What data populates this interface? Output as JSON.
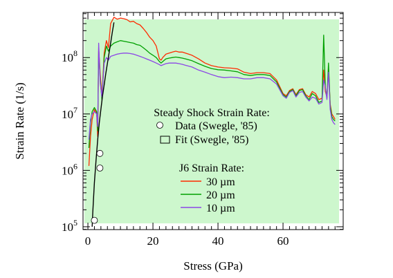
{
  "chart_data": {
    "type": "line",
    "title": "",
    "xlabel": "Stress (GPa)",
    "ylabel": "Strain Rate (1/s)",
    "xlim": [
      -1.5,
      78.5
    ],
    "ylim_log10": [
      4.95,
      8.8
    ],
    "y_scale": "log",
    "x_ticks": [
      0,
      20,
      40,
      60
    ],
    "x_tick_labels": [
      "0",
      "20",
      "40",
      "60"
    ],
    "y_ticks_log10": [
      5,
      6,
      7,
      8
    ],
    "y_tick_labels": [
      {
        "base": "10",
        "exp": "5"
      },
      {
        "base": "10",
        "exp": "6"
      },
      {
        "base": "10",
        "exp": "7"
      },
      {
        "base": "10",
        "exp": "8"
      }
    ],
    "grid": false,
    "background_color": "#cdf7cd",
    "legend": {
      "placement": "center",
      "heading_steady": "Steady Shock Strain Rate:",
      "data_label": "Data (Swegle, '85)",
      "fit_label": "Fit (Swegle, '85)",
      "heading_j6": "J6 Strain Rate:"
    },
    "data_points": {
      "name": "Data (Swegle, '85)",
      "x": [
        2.0,
        3.7,
        3.7
      ],
      "y": [
        130000,
        1100000,
        2000000
      ]
    },
    "fit_curve": {
      "name": "Fit (Swegle, '85)",
      "color": "#000000",
      "x": [
        1.3,
        1.5,
        2,
        2.5,
        3,
        3.5,
        4,
        4.5,
        5,
        5.5,
        6,
        6.5,
        7,
        7.5,
        8
      ],
      "y": [
        100000,
        180000,
        600000,
        1500000,
        3500000,
        7000000,
        12000000,
        21000000,
        33000000,
        52000000,
        80000000,
        120000000,
        180000000,
        280000000,
        420000000
      ]
    },
    "series": [
      {
        "name": "30 µm",
        "color": "#ff2a00",
        "x": [
          0.3,
          0.8,
          1.3,
          2,
          2.7,
          3.0,
          3.3,
          3.8,
          4.3,
          5,
          5.7,
          6.3,
          7,
          8,
          9,
          10,
          11,
          12,
          13,
          14,
          15,
          16,
          17,
          18,
          19,
          20,
          21,
          22,
          22.5,
          23,
          24,
          25,
          26,
          27,
          28,
          29,
          30,
          32,
          34,
          36,
          38,
          40,
          42,
          44,
          46,
          48,
          50,
          52,
          54,
          56,
          58,
          60,
          61,
          62,
          63,
          64,
          65,
          66,
          67,
          68,
          69,
          70,
          71,
          72,
          72.5,
          73,
          73.5,
          74,
          74.5,
          75,
          75.5,
          76
        ],
        "y": [
          1200000,
          4000000,
          8000000,
          12000000,
          10000000,
          4000000,
          150000000,
          50000000,
          20000000,
          120000000,
          200000000,
          150000000,
          400000000,
          520000000,
          480000000,
          500000000,
          490000000,
          470000000,
          430000000,
          440000000,
          400000000,
          380000000,
          330000000,
          280000000,
          230000000,
          200000000,
          160000000,
          95000000,
          90000000,
          100000000,
          115000000,
          120000000,
          125000000,
          130000000,
          125000000,
          125000000,
          120000000,
          110000000,
          95000000,
          80000000,
          72000000,
          68000000,
          66000000,
          65000000,
          63000000,
          55000000,
          52000000,
          54000000,
          54000000,
          52000000,
          40000000,
          23000000,
          21000000,
          26000000,
          28000000,
          22000000,
          27000000,
          28000000,
          22000000,
          20000000,
          25000000,
          23000000,
          18000000,
          19000000,
          60000000,
          25000000,
          20000000,
          65000000,
          15000000,
          10000000,
          9000000,
          8000000
        ]
      },
      {
        "name": "20 µm",
        "color": "#00a000",
        "x": [
          0.3,
          0.8,
          1.3,
          2,
          2.7,
          3.0,
          3.3,
          3.8,
          4.3,
          5,
          5.7,
          6.3,
          7,
          8,
          9,
          10,
          11,
          12,
          13,
          14,
          15,
          16,
          17,
          18,
          19,
          20,
          21,
          22,
          22.5,
          23,
          24,
          25,
          26,
          27,
          28,
          29,
          30,
          32,
          34,
          36,
          38,
          40,
          42,
          44,
          46,
          48,
          50,
          52,
          54,
          56,
          58,
          60,
          61,
          62,
          63,
          64,
          65,
          66,
          67,
          68,
          69,
          70,
          71,
          72,
          72.5,
          73,
          73.5,
          74,
          74.5,
          75,
          75.5,
          76
        ],
        "y": [
          2500000,
          7000000,
          11000000,
          13000000,
          11000000,
          5000000,
          130000000,
          40000000,
          18000000,
          100000000,
          160000000,
          130000000,
          160000000,
          180000000,
          190000000,
          200000000,
          195000000,
          190000000,
          185000000,
          180000000,
          170000000,
          165000000,
          150000000,
          135000000,
          120000000,
          110000000,
          100000000,
          85000000,
          80000000,
          85000000,
          95000000,
          98000000,
          100000000,
          102000000,
          100000000,
          98000000,
          95000000,
          88000000,
          78000000,
          70000000,
          64000000,
          61000000,
          60000000,
          58000000,
          56000000,
          50000000,
          48000000,
          50000000,
          50000000,
          48000000,
          37000000,
          22000000,
          20000000,
          25000000,
          27000000,
          21000000,
          26000000,
          27000000,
          21000000,
          18000000,
          23000000,
          21000000,
          16000000,
          17000000,
          250000000,
          30000000,
          19000000,
          80000000,
          14000000,
          9000000,
          8000000,
          7500000
        ]
      },
      {
        "name": "10 µm",
        "color": "#8c46e6",
        "x": [
          0.3,
          0.8,
          1.3,
          2,
          2.7,
          3.0,
          3.3,
          3.8,
          4.3,
          5,
          5.7,
          6.3,
          7,
          8,
          9,
          10,
          11,
          12,
          13,
          14,
          15,
          16,
          17,
          18,
          19,
          20,
          21,
          22,
          22.5,
          23,
          24,
          25,
          26,
          27,
          28,
          29,
          30,
          32,
          34,
          36,
          38,
          40,
          42,
          44,
          46,
          48,
          50,
          52,
          54,
          56,
          58,
          60,
          61,
          62,
          63,
          64,
          65,
          66,
          67,
          68,
          69,
          70,
          71,
          72,
          72.5,
          73,
          73.5,
          74,
          74.5,
          75,
          75.5,
          76
        ],
        "y": [
          3500000,
          8000000,
          10000000,
          11000000,
          10000000,
          6000000,
          180000000,
          35000000,
          20000000,
          80000000,
          100000000,
          90000000,
          105000000,
          110000000,
          115000000,
          118000000,
          120000000,
          120000000,
          118000000,
          115000000,
          110000000,
          105000000,
          100000000,
          95000000,
          90000000,
          85000000,
          80000000,
          75000000,
          72000000,
          74000000,
          78000000,
          80000000,
          80000000,
          80000000,
          78000000,
          76000000,
          73000000,
          68000000,
          60000000,
          55000000,
          50000000,
          46000000,
          44000000,
          45000000,
          44000000,
          42000000,
          42000000,
          44000000,
          44000000,
          42000000,
          34000000,
          21000000,
          19000000,
          24000000,
          26000000,
          20000000,
          24000000,
          25000000,
          20000000,
          17000000,
          20000000,
          19000000,
          15000000,
          16000000,
          40000000,
          30000000,
          18000000,
          55000000,
          12000000,
          8000000,
          7000000,
          6500000
        ]
      }
    ]
  }
}
